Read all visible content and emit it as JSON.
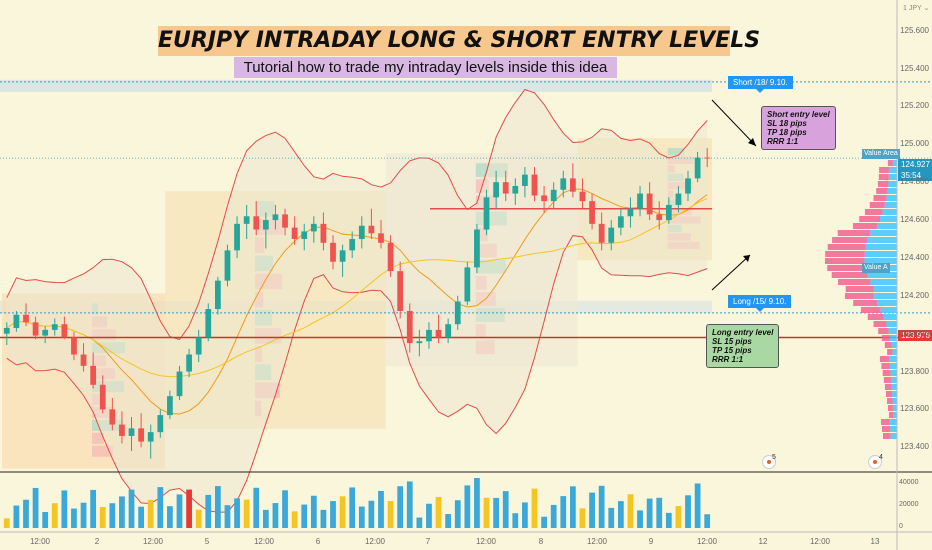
{
  "title": "EURJPY INTRADAY LONG & SHORT ENTRY LEVELS",
  "subtitle": "Tutorial how to trade my intraday levels inside this idea",
  "currency": "JPY",
  "colors": {
    "background": "#faf6dc",
    "up_candle": "#26a69a",
    "down_candle": "#ef5350",
    "bollinger": "#e24c4c",
    "orange_ma": "#f59a1b",
    "yellow_ma": "#f3c623",
    "short_level": "#e24c4c",
    "long_level": "#d32f2f",
    "dotted_level": "#2aa0c7",
    "volume_profile_up": "#40c4ff",
    "volume_profile_down": "#f06292"
  },
  "annotations": {
    "short_tag": "Short /18/ 9.10.",
    "long_tag": "Long /15/ 9.10.",
    "short_note": [
      "Short entry level",
      "SL 18 pips",
      "TP 18 pips",
      "RRR 1:1"
    ],
    "long_note": [
      "Long entry level",
      "SL 15 pips",
      "TP 15 pips",
      "RRR 1:1"
    ],
    "value_area_high": "Value Area",
    "value_area_low": "Value A"
  },
  "price_badges": {
    "current": "124.927",
    "countdown": "35:54",
    "long_level": "123.976"
  },
  "alerts": [
    {
      "icon": "alert-icon",
      "count": "5"
    },
    {
      "icon": "alert-icon",
      "count": "4"
    }
  ],
  "chart_data": {
    "type": "candlestick",
    "instrument": "EURJPY",
    "y_axis": {
      "range": [
        123.28,
        125.72
      ],
      "ticks": [
        "125.600",
        "125.400",
        "125.200",
        "125.000",
        "124.800",
        "124.600",
        "124.400",
        "124.200",
        "124.000",
        "123.800",
        "123.600",
        "123.400"
      ]
    },
    "x_axis": {
      "ticks": [
        "12:00",
        "2",
        "12:00",
        "5",
        "12:00",
        "6",
        "12:00",
        "7",
        "12:00",
        "8",
        "12:00",
        "9",
        "12:00",
        "12",
        "12:00",
        "13"
      ]
    },
    "levels": {
      "short_entry": 125.33,
      "long_entry": 124.11,
      "red_level_long": 123.98,
      "red_level_short": 124.66,
      "current_price": 124.927
    },
    "volume_axis": {
      "ticks": [
        "40000",
        "20000",
        "0"
      ]
    },
    "candles": [
      [
        124.0,
        124.06,
        123.94,
        124.03
      ],
      [
        124.03,
        124.12,
        124.01,
        124.1
      ],
      [
        124.1,
        124.16,
        124.04,
        124.06
      ],
      [
        124.06,
        124.09,
        123.97,
        123.99
      ],
      [
        123.99,
        124.04,
        123.95,
        124.02
      ],
      [
        124.02,
        124.08,
        123.99,
        124.05
      ],
      [
        124.05,
        124.09,
        123.97,
        123.98
      ],
      [
        123.98,
        124.01,
        123.86,
        123.89
      ],
      [
        123.89,
        123.95,
        123.8,
        123.83
      ],
      [
        123.83,
        123.9,
        123.71,
        123.73
      ],
      [
        123.73,
        123.78,
        123.58,
        123.6
      ],
      [
        123.6,
        123.66,
        123.49,
        123.52
      ],
      [
        123.52,
        123.59,
        123.42,
        123.46
      ],
      [
        123.46,
        123.56,
        123.38,
        123.5
      ],
      [
        123.5,
        123.58,
        123.4,
        123.43
      ],
      [
        123.43,
        123.52,
        123.34,
        123.48
      ],
      [
        123.48,
        123.6,
        123.45,
        123.57
      ],
      [
        123.57,
        123.7,
        123.55,
        123.67
      ],
      [
        123.67,
        123.83,
        123.65,
        123.8
      ],
      [
        123.8,
        123.92,
        123.77,
        123.89
      ],
      [
        123.89,
        124.02,
        123.85,
        123.98
      ],
      [
        123.98,
        124.16,
        123.96,
        124.13
      ],
      [
        124.13,
        124.3,
        124.1,
        124.28
      ],
      [
        124.28,
        124.47,
        124.25,
        124.44
      ],
      [
        124.44,
        124.62,
        124.4,
        124.58
      ],
      [
        124.58,
        124.68,
        124.5,
        124.62
      ],
      [
        124.62,
        124.7,
        124.52,
        124.55
      ],
      [
        124.55,
        124.64,
        124.45,
        124.6
      ],
      [
        124.6,
        124.68,
        124.55,
        124.63
      ],
      [
        124.63,
        124.66,
        124.52,
        124.56
      ],
      [
        124.56,
        124.62,
        124.47,
        124.5
      ],
      [
        124.5,
        124.58,
        124.44,
        124.54
      ],
      [
        124.54,
        124.62,
        124.48,
        124.58
      ],
      [
        124.58,
        124.64,
        124.44,
        124.48
      ],
      [
        124.48,
        124.52,
        124.34,
        124.38
      ],
      [
        124.38,
        124.47,
        124.3,
        124.44
      ],
      [
        124.44,
        124.54,
        124.4,
        124.5
      ],
      [
        124.5,
        124.62,
        124.45,
        124.57
      ],
      [
        124.57,
        124.66,
        124.5,
        124.53
      ],
      [
        124.53,
        124.6,
        124.45,
        124.48
      ],
      [
        124.48,
        124.52,
        124.3,
        124.33
      ],
      [
        124.33,
        124.38,
        124.08,
        124.12
      ],
      [
        124.12,
        124.16,
        123.9,
        123.95
      ],
      [
        123.95,
        124.02,
        123.88,
        123.96
      ],
      [
        123.96,
        124.06,
        123.92,
        124.02
      ],
      [
        124.02,
        124.1,
        123.95,
        123.98
      ],
      [
        123.98,
        124.08,
        123.95,
        124.05
      ],
      [
        124.05,
        124.2,
        124.02,
        124.17
      ],
      [
        124.17,
        124.38,
        124.15,
        124.35
      ],
      [
        124.35,
        124.58,
        124.32,
        124.55
      ],
      [
        124.55,
        124.76,
        124.52,
        124.72
      ],
      [
        124.72,
        124.86,
        124.66,
        124.8
      ],
      [
        124.8,
        124.86,
        124.7,
        124.74
      ],
      [
        124.74,
        124.82,
        124.68,
        124.78
      ],
      [
        124.78,
        124.88,
        124.72,
        124.84
      ],
      [
        124.84,
        124.88,
        124.7,
        124.73
      ],
      [
        124.73,
        124.78,
        124.64,
        124.7
      ],
      [
        124.7,
        124.8,
        124.66,
        124.76
      ],
      [
        124.76,
        124.86,
        124.72,
        124.82
      ],
      [
        124.82,
        124.9,
        124.72,
        124.75
      ],
      [
        124.75,
        124.82,
        124.66,
        124.7
      ],
      [
        124.7,
        124.74,
        124.55,
        124.58
      ],
      [
        124.58,
        124.64,
        124.44,
        124.48
      ],
      [
        124.48,
        124.6,
        124.44,
        124.56
      ],
      [
        124.56,
        124.66,
        124.52,
        124.62
      ],
      [
        124.62,
        124.72,
        124.56,
        124.66
      ],
      [
        124.66,
        124.78,
        124.62,
        124.74
      ],
      [
        124.74,
        124.8,
        124.6,
        124.63
      ],
      [
        124.63,
        124.7,
        124.55,
        124.6
      ],
      [
        124.6,
        124.72,
        124.58,
        124.68
      ],
      [
        124.68,
        124.78,
        124.64,
        124.74
      ],
      [
        124.74,
        124.86,
        124.7,
        124.82
      ],
      [
        124.82,
        124.96,
        124.8,
        124.93
      ],
      [
        124.93,
        124.98,
        124.88,
        124.927
      ]
    ]
  }
}
